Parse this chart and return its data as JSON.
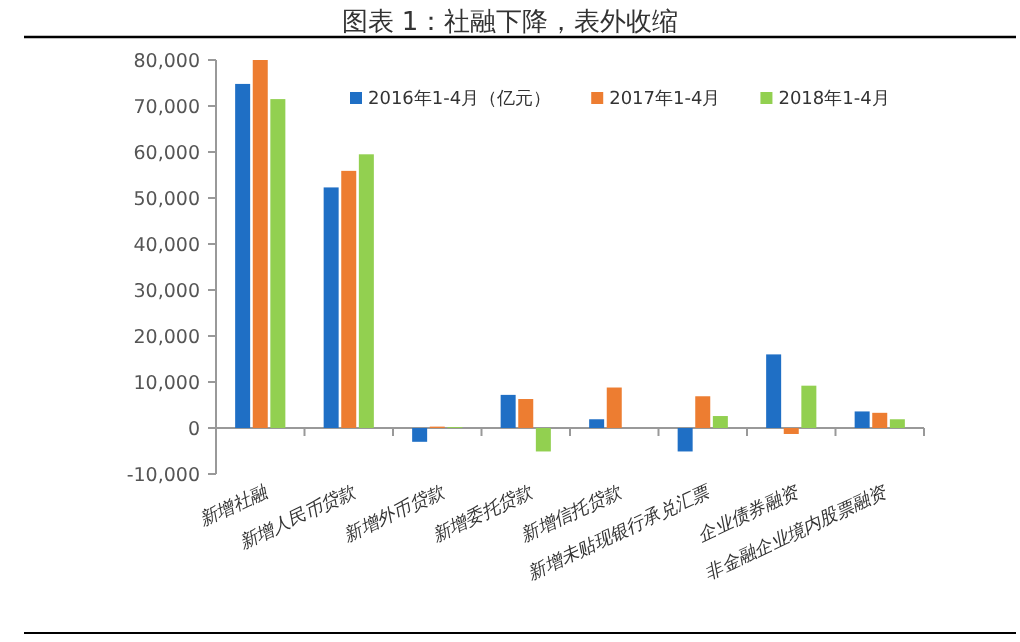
{
  "chart_data": {
    "type": "bar",
    "title": "图表 1：社融下降，表外收缩",
    "categories": [
      "新增社融",
      "新增人民币贷款",
      "新增外币贷款",
      "新增委托贷款",
      "新增信托贷款",
      "新增未贴现银行承兑汇票",
      "企业债券融资",
      "非金融企业境内股票融资"
    ],
    "series": [
      {
        "name": "2016年1-4月（亿元）",
        "color": "#1f6fc5",
        "values": [
          74800,
          52300,
          -3000,
          7200,
          1900,
          -5100,
          16000,
          3600
        ]
      },
      {
        "name": "2017年1-4月",
        "color": "#ed7d31",
        "values": [
          80000,
          55900,
          300,
          6300,
          8800,
          6900,
          -1300,
          3300
        ]
      },
      {
        "name": "2018年1-4月",
        "color": "#92d050",
        "values": [
          71500,
          59500,
          200,
          -5100,
          null,
          2600,
          9200,
          1900
        ]
      }
    ],
    "ylim": [
      -10000,
      80000
    ],
    "yticks": [
      {
        "value": -10000,
        "label": "-10,000"
      },
      0,
      {
        "value": 10000,
        "label": "10,000"
      },
      {
        "value": 20000,
        "label": "20,000"
      },
      {
        "value": 30000,
        "label": "30,000"
      },
      {
        "value": 40000,
        "label": "40,000"
      },
      {
        "value": 50000,
        "label": "50,000"
      },
      {
        "value": 60000,
        "label": "60,000"
      },
      {
        "value": 70000,
        "label": "70,000"
      },
      {
        "value": 80000,
        "label": "80,000"
      }
    ],
    "legend": "top"
  }
}
